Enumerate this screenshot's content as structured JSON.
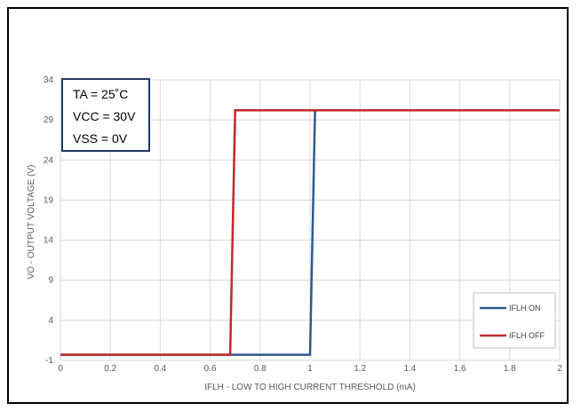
{
  "chart_data": {
    "type": "line",
    "xlabel": "IFLH - LOW TO HIGH CURRENT THRESHOLD (mA)",
    "ylabel": "VO - OUTPUT VOLTAGE (V)",
    "xlim": [
      0,
      2
    ],
    "ylim": [
      -1,
      34
    ],
    "x_ticks": [
      "0",
      "0.2",
      "0.4",
      "0.6",
      "0.8",
      "1",
      "1.2",
      "1.4",
      "1.6",
      "1.8",
      "2"
    ],
    "y_ticks": [
      "-1",
      "4",
      "9",
      "14",
      "19",
      "24",
      "29",
      "34"
    ],
    "grid": true,
    "legend_position": "bottom-right",
    "conditions": [
      "TA = 25˚C",
      "VCC = 30V",
      "VSS = 0V"
    ],
    "series": [
      {
        "name": "IFLH ON",
        "color": "#2e5a8f",
        "x": [
          0,
          1.0,
          1.02,
          2
        ],
        "y": [
          -0.3,
          -0.3,
          30.2,
          30.2
        ]
      },
      {
        "name": "IFLH OFF",
        "color": "#c0282d",
        "x": [
          0,
          0.68,
          0.7,
          2
        ],
        "y": [
          -0.3,
          -0.3,
          30.2,
          30.2
        ]
      }
    ]
  }
}
